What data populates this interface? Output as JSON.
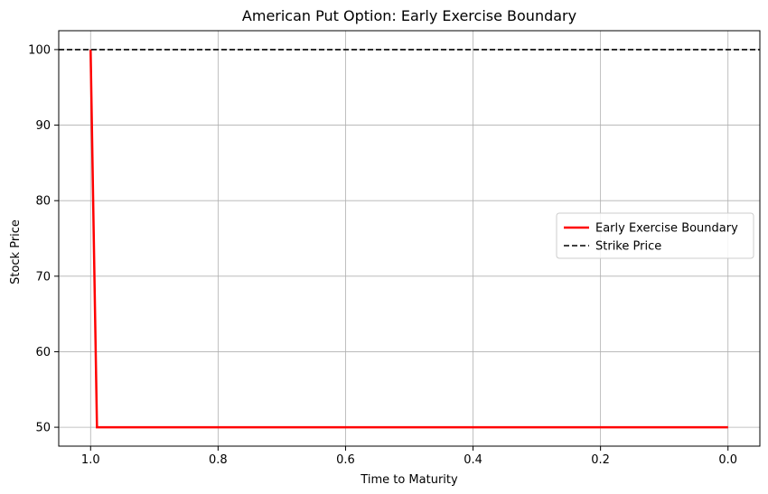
{
  "chart_data": {
    "type": "line",
    "title": "American Put Option: Early Exercise Boundary",
    "xlabel": "Time to Maturity",
    "ylabel": "Stock Price",
    "x_inverted": true,
    "xlim": [
      1.05,
      -0.05
    ],
    "ylim": [
      47.5,
      102.5
    ],
    "x_ticks": [
      1.0,
      0.8,
      0.6,
      0.4,
      0.2,
      0.0
    ],
    "x_tick_labels": [
      "1.0",
      "0.8",
      "0.6",
      "0.4",
      "0.2",
      "0.0"
    ],
    "y_ticks": [
      50,
      60,
      70,
      80,
      90,
      100
    ],
    "y_tick_labels": [
      "50",
      "60",
      "70",
      "80",
      "90",
      "100"
    ],
    "grid": true,
    "legend_position": "center-right",
    "series": [
      {
        "name": "Early Exercise Boundary",
        "style": "solid",
        "color": "#ff0000",
        "x": [
          1.0,
          0.99,
          0.0
        ],
        "y": [
          100,
          50,
          50
        ]
      }
    ],
    "hlines": [
      {
        "name": "Strike Price",
        "y": 100,
        "style": "dashed",
        "color": "#000000"
      }
    ]
  }
}
